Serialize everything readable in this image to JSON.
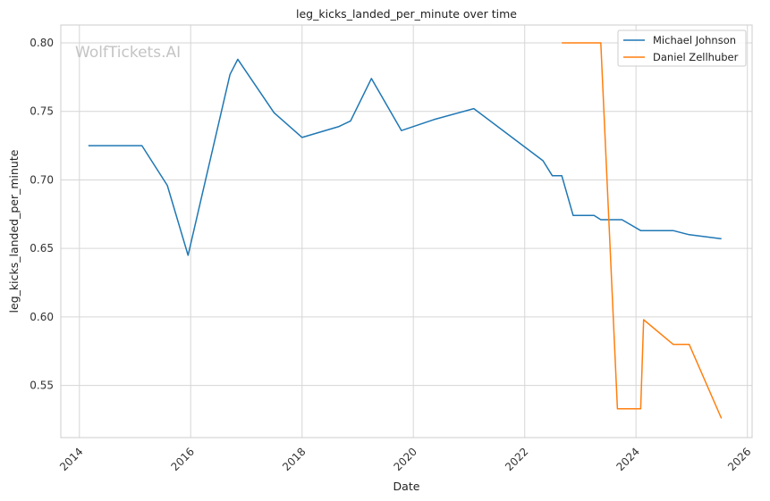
{
  "chart_data": {
    "type": "line",
    "title": "leg_kicks_landed_per_minute over time",
    "xlabel": "Date",
    "ylabel": "leg_kicks_landed_per_minute",
    "watermark": "WolfTickets.AI",
    "xlim": [
      "2013-09-01",
      "2026-02-01"
    ],
    "ylim": [
      0.512,
      0.813
    ],
    "x_ticks": [
      "2014",
      "2016",
      "2018",
      "2020",
      "2022",
      "2024",
      "2026"
    ],
    "y_ticks": [
      "0.55",
      "0.60",
      "0.65",
      "0.70",
      "0.75",
      "0.80"
    ],
    "grid": true,
    "legend_position": "top-right",
    "series": [
      {
        "name": "Michael Johnson",
        "color": "#1f77b4",
        "points": [
          [
            "2014-03-01",
            0.725
          ],
          [
            "2015-02-15",
            0.725
          ],
          [
            "2015-08-01",
            0.696
          ],
          [
            "2015-12-15",
            0.645
          ],
          [
            "2016-09-15",
            0.777
          ],
          [
            "2016-11-05",
            0.788
          ],
          [
            "2017-07-01",
            0.749
          ],
          [
            "2018-01-01",
            0.731
          ],
          [
            "2018-09-01",
            0.739
          ],
          [
            "2018-11-15",
            0.743
          ],
          [
            "2019-04-01",
            0.774
          ],
          [
            "2019-10-15",
            0.736
          ],
          [
            "2020-05-15",
            0.744
          ],
          [
            "2021-02-01",
            0.752
          ],
          [
            "2022-05-01",
            0.714
          ],
          [
            "2022-07-01",
            0.703
          ],
          [
            "2022-09-01",
            0.703
          ],
          [
            "2022-11-15",
            0.674
          ],
          [
            "2023-04-01",
            0.674
          ],
          [
            "2023-05-15",
            0.671
          ],
          [
            "2023-10-01",
            0.671
          ],
          [
            "2024-02-01",
            0.663
          ],
          [
            "2024-09-01",
            0.663
          ],
          [
            "2024-12-15",
            0.66
          ],
          [
            "2025-07-15",
            0.657
          ]
        ]
      },
      {
        "name": "Daniel Zellhuber",
        "color": "#ff7f0e",
        "points": [
          [
            "2022-09-01",
            0.8
          ],
          [
            "2023-05-15",
            0.8
          ],
          [
            "2023-09-01",
            0.533
          ],
          [
            "2024-02-01",
            0.533
          ],
          [
            "2024-02-20",
            0.598
          ],
          [
            "2024-09-01",
            0.58
          ],
          [
            "2024-12-15",
            0.58
          ],
          [
            "2025-07-15",
            0.526
          ]
        ]
      }
    ]
  }
}
